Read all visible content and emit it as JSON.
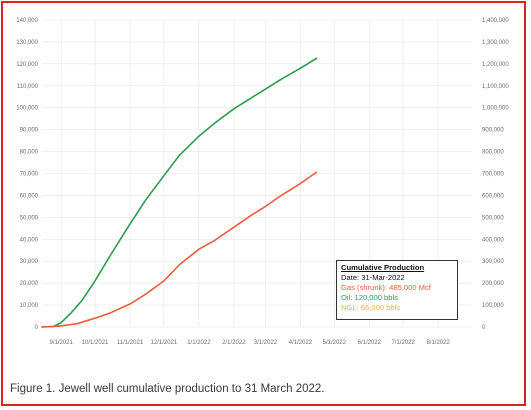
{
  "caption": "Figure 1. Jewell well cumulative production to 31 March 2022.",
  "colors": {
    "frame": "#e2231a",
    "gas": "#f05a3a",
    "oil": "#2e9a4e",
    "ngl": "#f2b632"
  },
  "legend": {
    "title": "Cumulative Production",
    "date": "Date: 31-Mar-2022",
    "gas": "Gas (shrunk): 485,000 Mcf",
    "oil": "Oil: 120,000 bbls",
    "ngl": "NGL: 66,000 bbls"
  },
  "chart_data": {
    "type": "line",
    "title": "",
    "xlabel": "",
    "ylabel": "",
    "x_ticks": [
      "9/1/2021",
      "10/1/2021",
      "11/1/2021",
      "12/1/2021",
      "1/1/2022",
      "2/1/2022",
      "3/1/2022",
      "4/1/2022",
      "5/1/2022",
      "6/1/2022",
      "7/1/2022",
      "8/1/2022"
    ],
    "y_left_ticks": [
      "0",
      "10,000",
      "20,000",
      "30,000",
      "40,000",
      "50,000",
      "60,000",
      "70,000",
      "80,000",
      "90,000",
      "100,000",
      "110,000",
      "120,000",
      "130,000",
      "140,000"
    ],
    "y_right_ticks": [
      "0",
      "100,000",
      "200,000",
      "300,000",
      "400,000",
      "500,000",
      "600,000",
      "700,000",
      "800,000",
      "900,000",
      "1,000,000",
      "1,100,000",
      "1,200,000",
      "1,300,000",
      "1,400,000"
    ],
    "xlim": [
      "2021-08-15",
      "2022-08-31"
    ],
    "ylim_left": [
      0,
      140000
    ],
    "ylim_right": [
      0,
      1400000
    ],
    "grid": true,
    "series": [
      {
        "key": "oil",
        "color": "#2e9a4e",
        "points": [
          [
            "2021-08-15",
            0
          ],
          [
            "2021-08-25",
            200
          ],
          [
            "2021-09-01",
            2000
          ],
          [
            "2021-09-10",
            6500
          ],
          [
            "2021-09-20",
            12500
          ],
          [
            "2021-10-01",
            21000
          ],
          [
            "2021-10-15",
            33000
          ],
          [
            "2021-11-01",
            47000
          ],
          [
            "2021-11-15",
            58000
          ],
          [
            "2021-12-01",
            69000
          ],
          [
            "2021-12-15",
            78500
          ],
          [
            "2022-01-01",
            87000
          ],
          [
            "2022-01-15",
            93000
          ],
          [
            "2022-02-01",
            99500
          ],
          [
            "2022-02-15",
            104000
          ],
          [
            "2022-03-01",
            108500
          ],
          [
            "2022-03-15",
            113000
          ],
          [
            "2022-04-01",
            118000
          ],
          [
            "2022-04-15",
            122500
          ]
        ]
      },
      {
        "key": "gas",
        "color": "#f05a3a",
        "points": [
          [
            "2021-08-15",
            0
          ],
          [
            "2021-09-01",
            5000
          ],
          [
            "2021-09-15",
            15000
          ],
          [
            "2021-10-01",
            40000
          ],
          [
            "2021-10-15",
            65000
          ],
          [
            "2021-11-01",
            105000
          ],
          [
            "2021-11-15",
            150000
          ],
          [
            "2021-12-01",
            210000
          ],
          [
            "2021-12-15",
            285000
          ],
          [
            "2022-01-01",
            355000
          ],
          [
            "2022-01-15",
            395000
          ],
          [
            "2022-02-01",
            455000
          ],
          [
            "2022-02-15",
            505000
          ],
          [
            "2022-03-01",
            550000
          ],
          [
            "2022-03-15",
            600000
          ],
          [
            "2022-04-01",
            655000
          ],
          [
            "2022-04-15",
            705000
          ]
        ]
      }
    ]
  }
}
